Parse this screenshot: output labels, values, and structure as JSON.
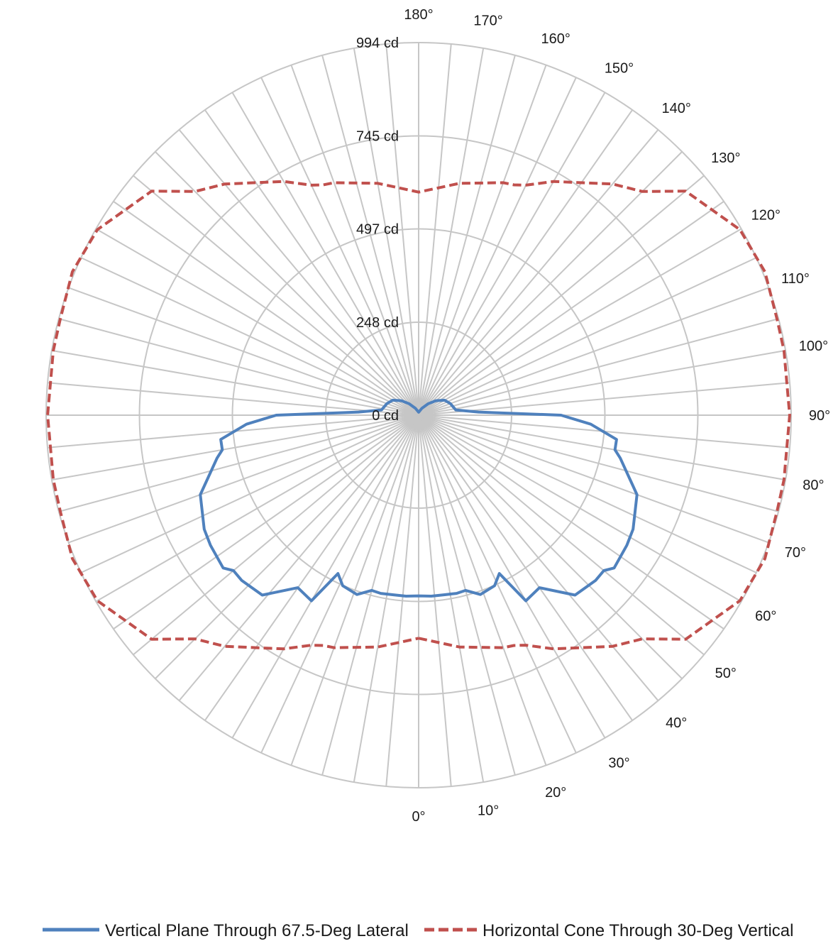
{
  "chart_data": {
    "type": "line",
    "subtype": "polar",
    "title": "",
    "radial_axis": {
      "max": 994,
      "tick_values": [
        0,
        248,
        497,
        745,
        994
      ],
      "tick_labels": [
        "0 cd",
        "248 cd",
        "497 cd",
        "745 cd",
        "994 cd"
      ]
    },
    "angular_axis": {
      "zero_direction": "bottom",
      "step_degrees": 5,
      "tick_values": [
        0,
        10,
        20,
        30,
        40,
        50,
        60,
        70,
        80,
        90,
        100,
        110,
        120,
        130,
        140,
        150,
        160,
        170,
        180
      ],
      "tick_labels": [
        "0°",
        "10°",
        "20°",
        "30°",
        "40°",
        "50°",
        "60°",
        "70°",
        "80°",
        "90°",
        "100°",
        "110°",
        "120°",
        "130°",
        "140°",
        "150°",
        "160°",
        "170°",
        "180°"
      ]
    },
    "grid": true,
    "legend": {
      "position": "bottom"
    },
    "series": [
      {
        "name": "Vertical Plane Through 67.5-Deg Lateral",
        "color": "#4F81BD",
        "line_style": "solid",
        "points": [
          [
            0,
            482
          ],
          [
            4,
            484
          ],
          [
            8,
            484
          ],
          [
            12,
            486
          ],
          [
            15,
            484
          ],
          [
            19,
            506
          ],
          [
            24,
            498
          ],
          [
            27,
            474
          ],
          [
            30,
            572
          ],
          [
            35,
            562
          ],
          [
            41,
            636
          ],
          [
            47,
            646
          ],
          [
            50,
            645
          ],
          [
            52,
            662
          ],
          [
            58,
            655
          ],
          [
            62,
            648
          ],
          [
            70,
            620
          ],
          [
            78,
            550
          ],
          [
            80,
            532
          ],
          [
            83,
            532
          ],
          [
            87,
            460
          ],
          [
            90,
            380
          ],
          [
            93,
            160
          ],
          [
            98,
            100
          ],
          [
            110,
            90
          ],
          [
            120,
            80
          ],
          [
            130,
            60
          ],
          [
            140,
            40
          ],
          [
            155,
            20
          ],
          [
            180,
            8
          ],
          [
            -155,
            20
          ],
          [
            -140,
            40
          ],
          [
            -130,
            60
          ],
          [
            -120,
            80
          ],
          [
            -110,
            90
          ],
          [
            -98,
            100
          ],
          [
            -93,
            160
          ],
          [
            -90,
            380
          ],
          [
            -87,
            460
          ],
          [
            -83,
            532
          ],
          [
            -80,
            532
          ],
          [
            -78,
            550
          ],
          [
            -70,
            620
          ],
          [
            -62,
            648
          ],
          [
            -58,
            655
          ],
          [
            -52,
            662
          ],
          [
            -50,
            645
          ],
          [
            -47,
            646
          ],
          [
            -41,
            636
          ],
          [
            -35,
            562
          ],
          [
            -30,
            572
          ],
          [
            -27,
            474
          ],
          [
            -24,
            498
          ],
          [
            -19,
            506
          ],
          [
            -15,
            484
          ],
          [
            -12,
            486
          ],
          [
            -8,
            484
          ],
          [
            -4,
            484
          ],
          [
            0,
            482
          ]
        ]
      },
      {
        "name": "Horizontal Cone Through 30-Deg Vertical",
        "color": "#C0504D",
        "line_style": "dashed",
        "points": [
          [
            0,
            595
          ],
          [
            10,
            628
          ],
          [
            20,
            660
          ],
          [
            22.5,
            665
          ],
          [
            25,
            677
          ],
          [
            30,
            720
          ],
          [
            40,
            805
          ],
          [
            45,
            844
          ],
          [
            50,
            930
          ],
          [
            60,
            990
          ],
          [
            67.5,
            1000
          ],
          [
            75,
            990
          ],
          [
            80,
            990
          ],
          [
            90,
            990
          ],
          [
            100,
            990
          ],
          [
            105,
            990
          ],
          [
            112.5,
            1000
          ],
          [
            120,
            990
          ],
          [
            130,
            930
          ],
          [
            135,
            844
          ],
          [
            140,
            805
          ],
          [
            150,
            720
          ],
          [
            155,
            677
          ],
          [
            157.5,
            665
          ],
          [
            160,
            660
          ],
          [
            170,
            628
          ],
          [
            180,
            595
          ],
          [
            -170,
            628
          ],
          [
            -160,
            660
          ],
          [
            -157.5,
            665
          ],
          [
            -155,
            677
          ],
          [
            -150,
            720
          ],
          [
            -140,
            805
          ],
          [
            -135,
            844
          ],
          [
            -130,
            930
          ],
          [
            -120,
            990
          ],
          [
            -112.5,
            1000
          ],
          [
            -105,
            990
          ],
          [
            -100,
            990
          ],
          [
            -90,
            990
          ],
          [
            -80,
            990
          ],
          [
            -75,
            990
          ],
          [
            -67.5,
            1000
          ],
          [
            -60,
            990
          ],
          [
            -50,
            930
          ],
          [
            -45,
            844
          ],
          [
            -40,
            805
          ],
          [
            -30,
            720
          ],
          [
            -25,
            677
          ],
          [
            -22.5,
            665
          ],
          [
            -20,
            660
          ],
          [
            -10,
            628
          ],
          [
            0,
            595
          ]
        ]
      }
    ]
  }
}
